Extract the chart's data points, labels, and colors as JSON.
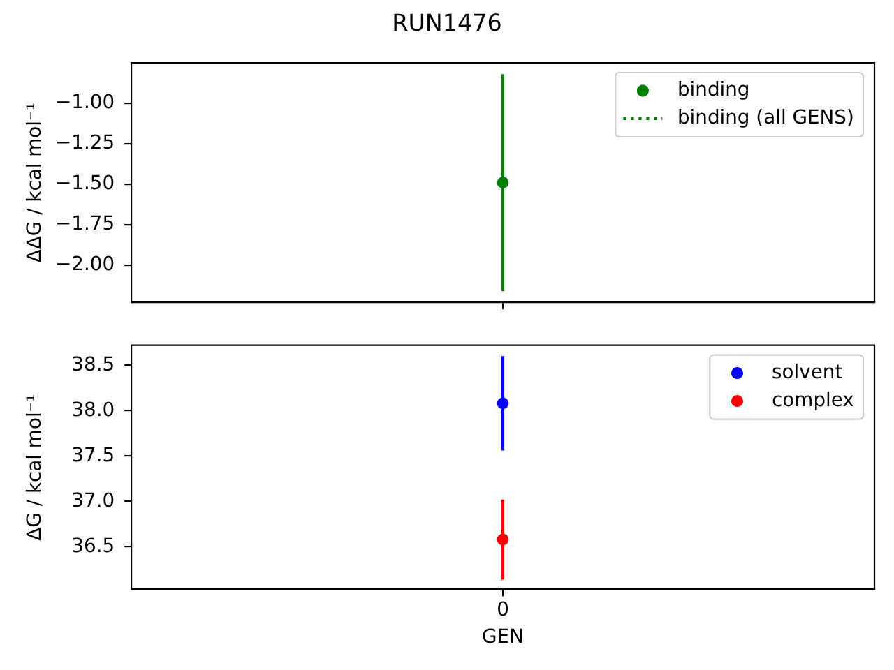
{
  "chart_data": [
    {
      "type": "scatter",
      "title": "RUN1476",
      "ylabel": "ΔΔG / kcal mol⁻¹",
      "categories": [
        null
      ],
      "series": [
        {
          "name": "binding",
          "color": "#008000",
          "values": [
            -1.49
          ],
          "errors": [
            0.67
          ]
        },
        {
          "name": "binding (all GENS)",
          "type": "line",
          "color": "#008000",
          "values": [
            null
          ],
          "line_style": "dotted"
        }
      ],
      "ylim": [
        -2.23,
        -0.75
      ],
      "yticks": [
        {
          "value": -2,
          "label": "−2.00"
        },
        {
          "value": -1.75,
          "label": "−1.75"
        },
        {
          "value": -1.5,
          "label": "−1.50"
        },
        {
          "value": -1.25,
          "label": "−1.25"
        },
        {
          "value": -1,
          "label": "−1.00"
        }
      ],
      "legend": "top right"
    },
    {
      "type": "scatter",
      "xlabel": "GEN",
      "ylabel": "ΔG / kcal mol⁻¹",
      "categories": [
        "0"
      ],
      "series": [
        {
          "name": "solvent",
          "color": "#0000ff",
          "values": [
            38.08
          ],
          "errors": [
            0.52
          ]
        },
        {
          "name": "complex",
          "color": "#ff0000",
          "values": [
            36.58
          ],
          "errors": [
            0.44
          ]
        }
      ],
      "ylim": [
        36.03,
        38.72
      ],
      "yticks": [
        {
          "value": 36.5,
          "label": "36.5"
        },
        {
          "value": 37,
          "label": "37.0"
        },
        {
          "value": 37.5,
          "label": "37.5"
        },
        {
          "value": 38,
          "label": "38.0"
        },
        {
          "value": 38.5,
          "label": "38.5"
        }
      ],
      "legend": "top right"
    }
  ]
}
